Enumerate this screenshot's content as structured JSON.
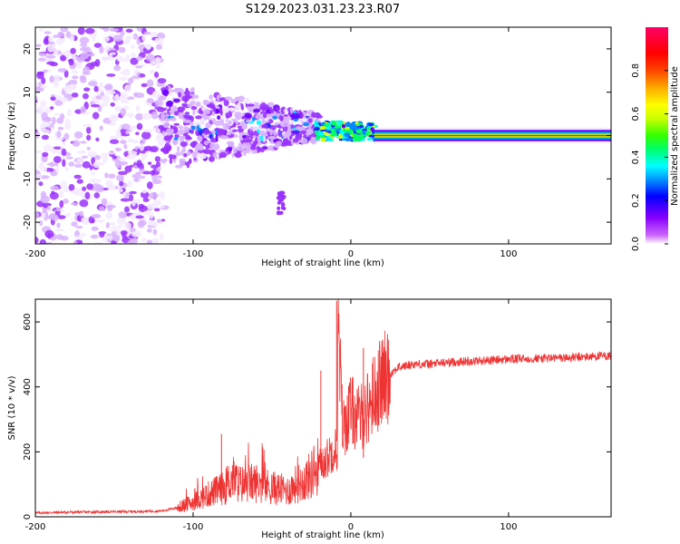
{
  "title": "S129.2023.031.23.23.R07",
  "chart_data": [
    {
      "type": "heatmap",
      "xlabel": "Height of straight line (km)",
      "ylabel": "Frequency (Hz)",
      "xlim": [
        -200,
        165
      ],
      "ylim": [
        -25,
        25
      ],
      "x_ticks": [
        -200,
        -100,
        0,
        100
      ],
      "y_ticks": [
        -20,
        -10,
        0,
        10,
        20
      ],
      "colorbar": {
        "label": "Normalized spectral amplitude",
        "range": [
          0,
          1
        ],
        "ticks": [
          "0.0",
          "0.2",
          "0.4",
          "0.6",
          "0.8"
        ],
        "colormap": "rainbow (magenta-blue-cyan-green-yellow-orange-red-pink)"
      },
      "description_regions": [
        {
          "x_range": [
            -200,
            -120
          ],
          "freq_range": [
            -25,
            25
          ],
          "amplitude": "low, scattered"
        },
        {
          "x_range": [
            -120,
            -20
          ],
          "freq_range": [
            -8,
            12
          ],
          "amplitude": "low-medium, clustered"
        },
        {
          "x_range": [
            -20,
            15
          ],
          "freq_range": [
            -1,
            3
          ],
          "amplitude": "medium-high"
        },
        {
          "x_range": [
            15,
            165
          ],
          "freq_range": [
            -1,
            1
          ],
          "amplitude": "high, steady band at 0 Hz"
        }
      ]
    },
    {
      "type": "line",
      "xlabel": "Height of straight line (km)",
      "ylabel": "SNR (10 * v/v)",
      "xlim": [
        -200,
        165
      ],
      "ylim": [
        0,
        670
      ],
      "x_ticks": [
        -200,
        -100,
        0,
        100
      ],
      "y_ticks": [
        0,
        200,
        400,
        600
      ],
      "series": [
        {
          "color": "#ee3333",
          "x": [
            -200,
            -180,
            -160,
            -140,
            -120,
            -110,
            -100,
            -90,
            -80,
            -75,
            -70,
            -60,
            -50,
            -40,
            -35,
            -30,
            -25,
            -20,
            -15,
            -10,
            -9,
            -5,
            0,
            5,
            10,
            15,
            20,
            25,
            30,
            40,
            50,
            60,
            80,
            100,
            120,
            140,
            160,
            165
          ],
          "y": [
            12,
            14,
            15,
            16,
            18,
            28,
            45,
            70,
            90,
            120,
            100,
            105,
            90,
            80,
            100,
            110,
            130,
            160,
            180,
            220,
            650,
            270,
            330,
            300,
            330,
            380,
            420,
            440,
            460,
            470,
            470,
            475,
            480,
            485,
            488,
            490,
            495,
            495
          ]
        }
      ],
      "spikes": [
        {
          "x": -9,
          "y": 665
        },
        {
          "x": -19,
          "y": 450
        },
        {
          "x": 8,
          "y": 520
        },
        {
          "x": -82,
          "y": 255
        }
      ]
    }
  ]
}
